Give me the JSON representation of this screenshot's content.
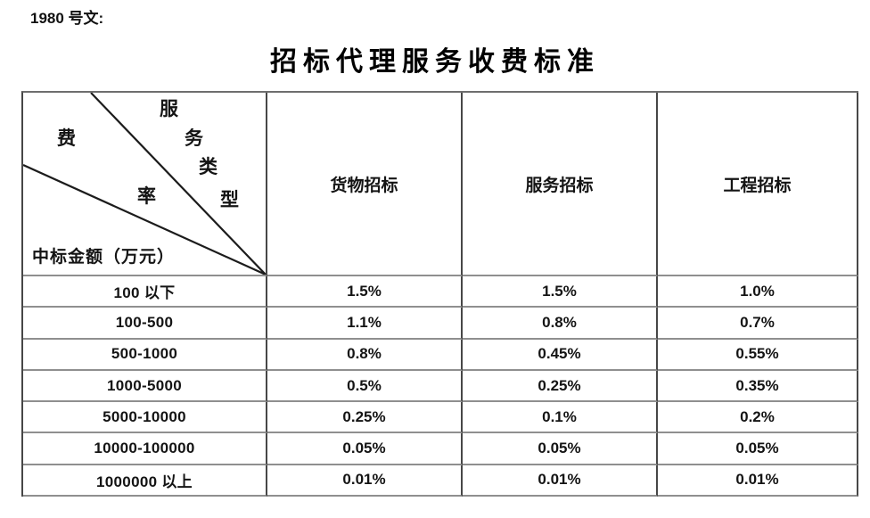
{
  "doc": {
    "ref": "1980 号文:",
    "title": "招标代理服务收费标准"
  },
  "table": {
    "corner": {
      "service_type_chars": [
        "服",
        "务",
        "类",
        "型"
      ],
      "fee_rate_chars": [
        "费",
        "率"
      ],
      "amount_label": "中标金额（万元）"
    },
    "columns": [
      "货物招标",
      "服务招标",
      "工程招标"
    ],
    "rows": [
      {
        "amount_range": "100 以下",
        "values": [
          "1.5%",
          "1.5%",
          "1.0%"
        ]
      },
      {
        "amount_range": "100-500",
        "values": [
          "1.1%",
          "0.8%",
          "0.7%"
        ]
      },
      {
        "amount_range": "500-1000",
        "values": [
          "0.8%",
          "0.45%",
          "0.55%"
        ]
      },
      {
        "amount_range": "1000-5000",
        "values": [
          "0.5%",
          "0.25%",
          "0.35%"
        ]
      },
      {
        "amount_range": "5000-10000",
        "values": [
          "0.25%",
          "0.1%",
          "0.2%"
        ]
      },
      {
        "amount_range": "10000-100000",
        "values": [
          "0.05%",
          "0.05%",
          "0.05%"
        ]
      },
      {
        "amount_range": "1000000 以上",
        "values": [
          "0.01%",
          "0.01%",
          "0.01%"
        ]
      }
    ]
  }
}
